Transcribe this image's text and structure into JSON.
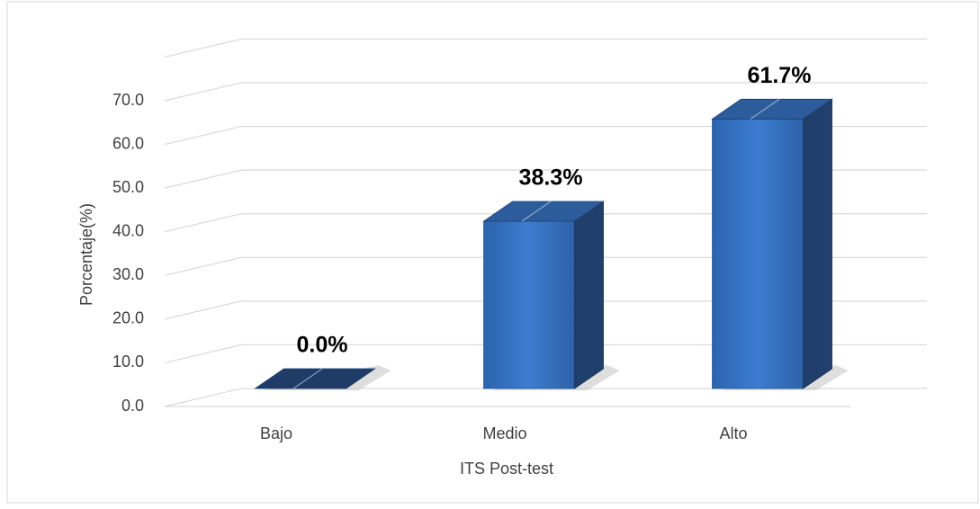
{
  "chart_data": {
    "type": "bar3d",
    "categories": [
      "Bajo",
      "Medio",
      "Alto"
    ],
    "values": [
      0,
      38.3,
      61.7
    ],
    "value_labels": [
      "0.0%",
      "38.3%",
      "61.7%"
    ],
    "color": "#3a78c8",
    "x_label": "ITS Post-test",
    "y_label": "Porcentaje(%)",
    "ylim": [
      0,
      80
    ],
    "yticks": [
      {
        "value": 0,
        "label": "0.0"
      },
      {
        "value": 10,
        "label": "10.0"
      },
      {
        "value": 20,
        "label": "20.0"
      },
      {
        "value": 30,
        "label": "30.0"
      },
      {
        "value": 40,
        "label": "40.0"
      },
      {
        "value": 50,
        "label": "50.0"
      },
      {
        "value": 60,
        "label": "60.0"
      },
      {
        "value": 70,
        "label": "70.0"
      }
    ],
    "grid": true
  }
}
